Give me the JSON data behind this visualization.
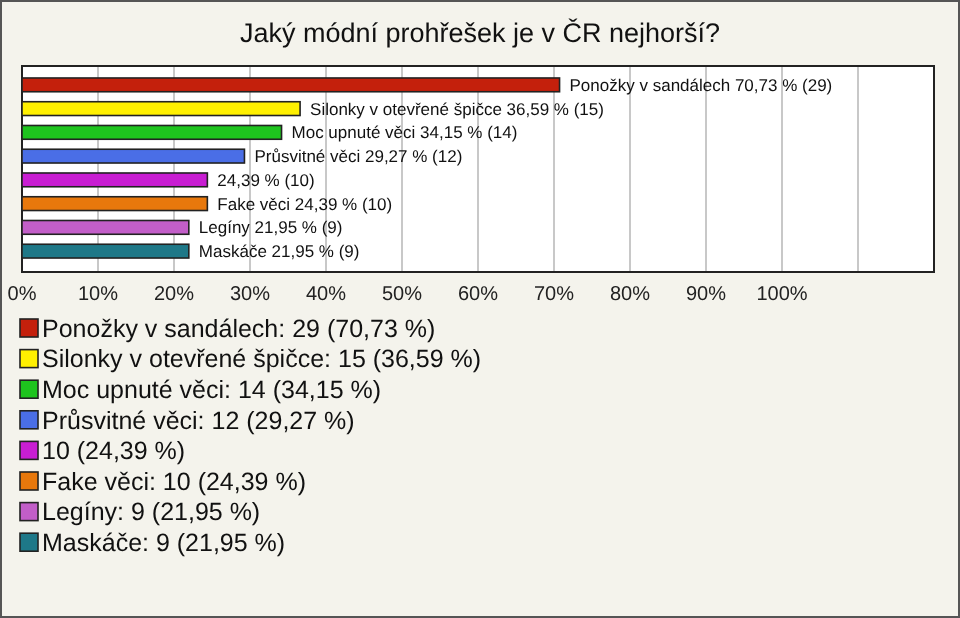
{
  "chart_data": {
    "type": "bar",
    "orientation": "horizontal",
    "title": "Jaký módní prohřešek je v ČR nejhorší?",
    "categories": [
      "Ponožky v sandálech",
      "Silonky v otevřené špičce",
      "Moc upnuté věci",
      "Průsvitné věci",
      null,
      "Fake věci",
      "Legíny",
      "Maskáče"
    ],
    "values": [
      70.73,
      36.59,
      34.15,
      29.27,
      24.39,
      24.39,
      21.95,
      21.95
    ],
    "colors": [
      "#c4200c",
      "#fff000",
      "#1ec41e",
      "#4a6ee6",
      "#c81ed2",
      "#e8780c",
      "#c25ec8",
      "#1e7888"
    ],
    "value_labels": [
      "70,73 % (29)",
      "36,59 % (15)",
      "34,15 % (14)",
      "29,27 % (12)",
      "24,39 % (10)",
      "24,39 % (10)",
      "21,95 % (9)",
      "21,95 % (9)"
    ],
    "xlim": [
      0,
      120
    ],
    "xticks": [
      {
        "value": 0,
        "label": "0%"
      },
      {
        "value": 10,
        "label": "10%"
      },
      {
        "value": 20,
        "label": "20%"
      },
      {
        "value": 30,
        "label": "30%"
      },
      {
        "value": 40,
        "label": "40%"
      },
      {
        "value": 50,
        "label": "50%"
      },
      {
        "value": 60,
        "label": "60%"
      },
      {
        "value": 70,
        "label": "70%"
      },
      {
        "value": 80,
        "label": "80%"
      },
      {
        "value": 90,
        "label": "90%"
      },
      {
        "value": 100,
        "label": "100%"
      },
      {
        "value": 110,
        "label": null
      }
    ],
    "grid": "x",
    "annotations": [
      "Ponožky v sandálech: 29 (70,73 %)",
      "Silonky v otevřené špičce: 15 (36,59 %)",
      "Moc upnuté věci: 14 (34,15 %)",
      "Průsvitné věci: 12 (29,27 %)",
      "10 (24,39 %)",
      "Fake věci: 10 (24,39 %)",
      "Legíny: 9 (21,95 %)",
      "Maskáče: 9 (21,95 %)"
    ]
  }
}
